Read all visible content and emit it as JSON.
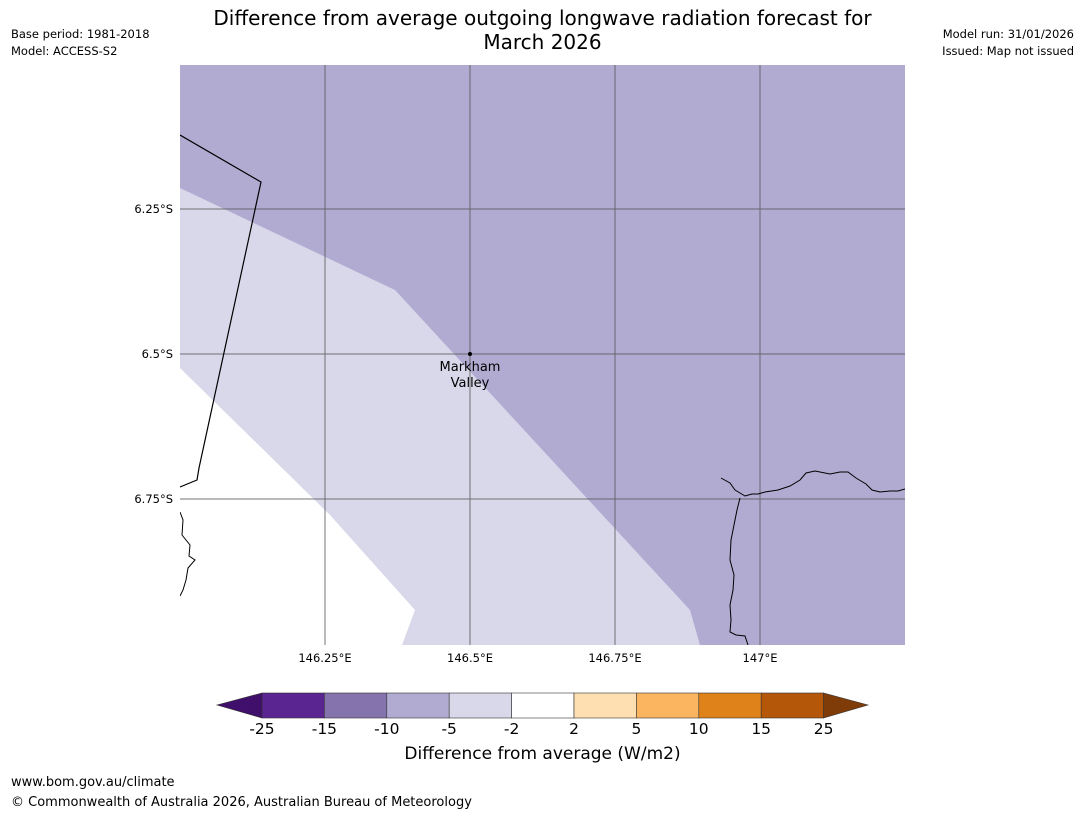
{
  "title_line1": "Difference from average outgoing longwave radiation forecast for",
  "title_line2": "March 2026",
  "meta_left": [
    "Base period: 1981-2018",
    "Model: ACCESS-S2"
  ],
  "meta_right": [
    "Model run: 31/01/2026",
    "Issued: Map not issued"
  ],
  "y_ticks": [
    "6.25°S",
    "6.5°S",
    "6.75°S"
  ],
  "x_ticks": [
    "146.25°E",
    "146.5°E",
    "146.75°E",
    "147°E"
  ],
  "place_label_line1": "Markham",
  "place_label_line2": "Valley",
  "colorbar": {
    "label": "Difference from average (W/m2)",
    "ticks": [
      "-25",
      "-15",
      "-10",
      "-5",
      "-2",
      "2",
      "5",
      "10",
      "15",
      "25"
    ],
    "colors": [
      "#3f0f6b",
      "#5a2590",
      "#8473ad",
      "#b1abd2",
      "#d8d8ea",
      "#ffffff",
      "#fedfb2",
      "#fbb560",
      "#e0821a",
      "#b45709",
      "#7f3b08"
    ]
  },
  "map_colors": {
    "light_purple": "#b1abd2",
    "pale_purple": "#d8d8ea",
    "white": "#ffffff"
  },
  "footer_url": "www.bom.gov.au/climate",
  "footer_copyright": "© Commonwealth of Australia 2026, Australian Bureau of Meteorology"
}
